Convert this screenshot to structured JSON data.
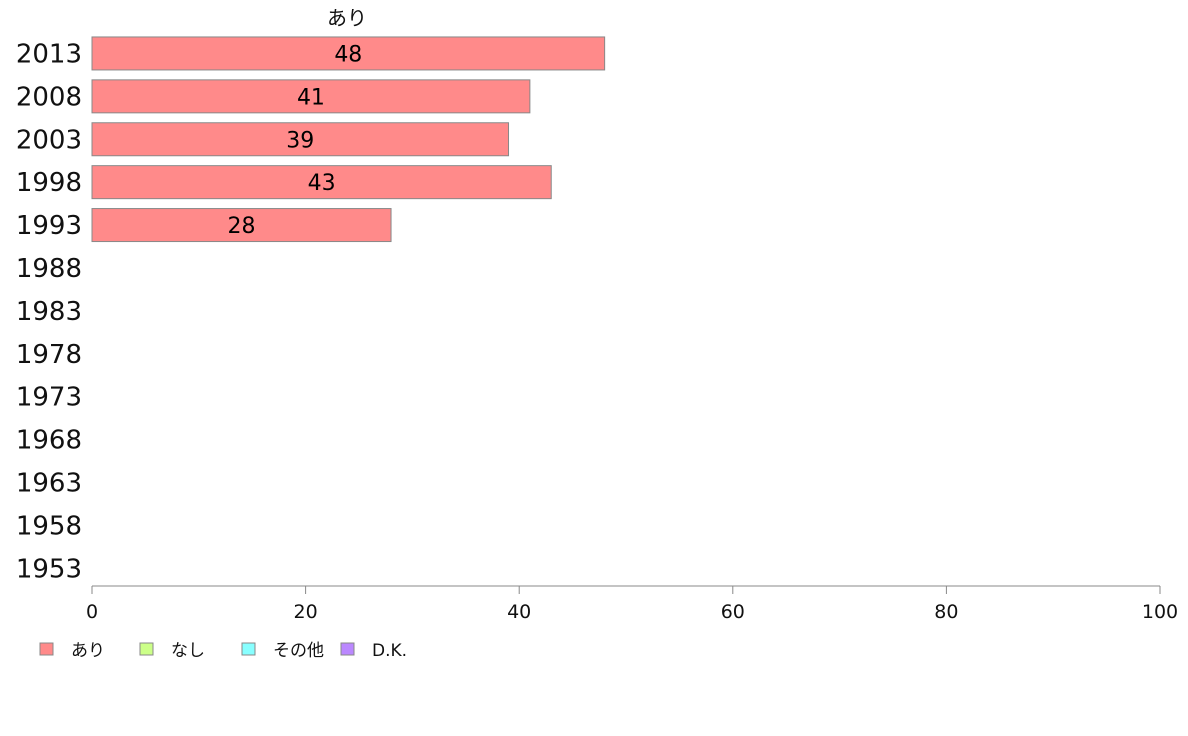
{
  "chart_data": {
    "type": "bar",
    "orientation": "horizontal",
    "stacked": true,
    "categories": [
      "2013",
      "2008",
      "2003",
      "1998",
      "1993",
      "1988",
      "1983",
      "1978",
      "1973",
      "1968",
      "1963",
      "1958",
      "1953"
    ],
    "series": [
      {
        "name": "あり",
        "color": "#ff8a8a",
        "values": [
          48,
          41,
          39,
          43,
          28,
          null,
          null,
          null,
          null,
          null,
          null,
          null,
          null
        ]
      },
      {
        "name": "なし",
        "color": "#ccff88",
        "values": [
          null,
          null,
          null,
          null,
          null,
          null,
          null,
          null,
          null,
          null,
          null,
          null,
          null
        ]
      },
      {
        "name": "その他",
        "color": "#88ffff",
        "values": [
          null,
          null,
          null,
          null,
          null,
          null,
          null,
          null,
          null,
          null,
          null,
          null,
          null
        ]
      },
      {
        "name": "D.K.",
        "color": "#bb88ff",
        "values": [
          null,
          null,
          null,
          null,
          null,
          null,
          null,
          null,
          null,
          null,
          null,
          null,
          null
        ]
      }
    ],
    "series_title_shown": "あり",
    "xlim": [
      0,
      100
    ],
    "xticks": [
      0,
      20,
      40,
      60,
      80,
      100
    ],
    "grid": false,
    "legend_position": "bottom-left"
  }
}
